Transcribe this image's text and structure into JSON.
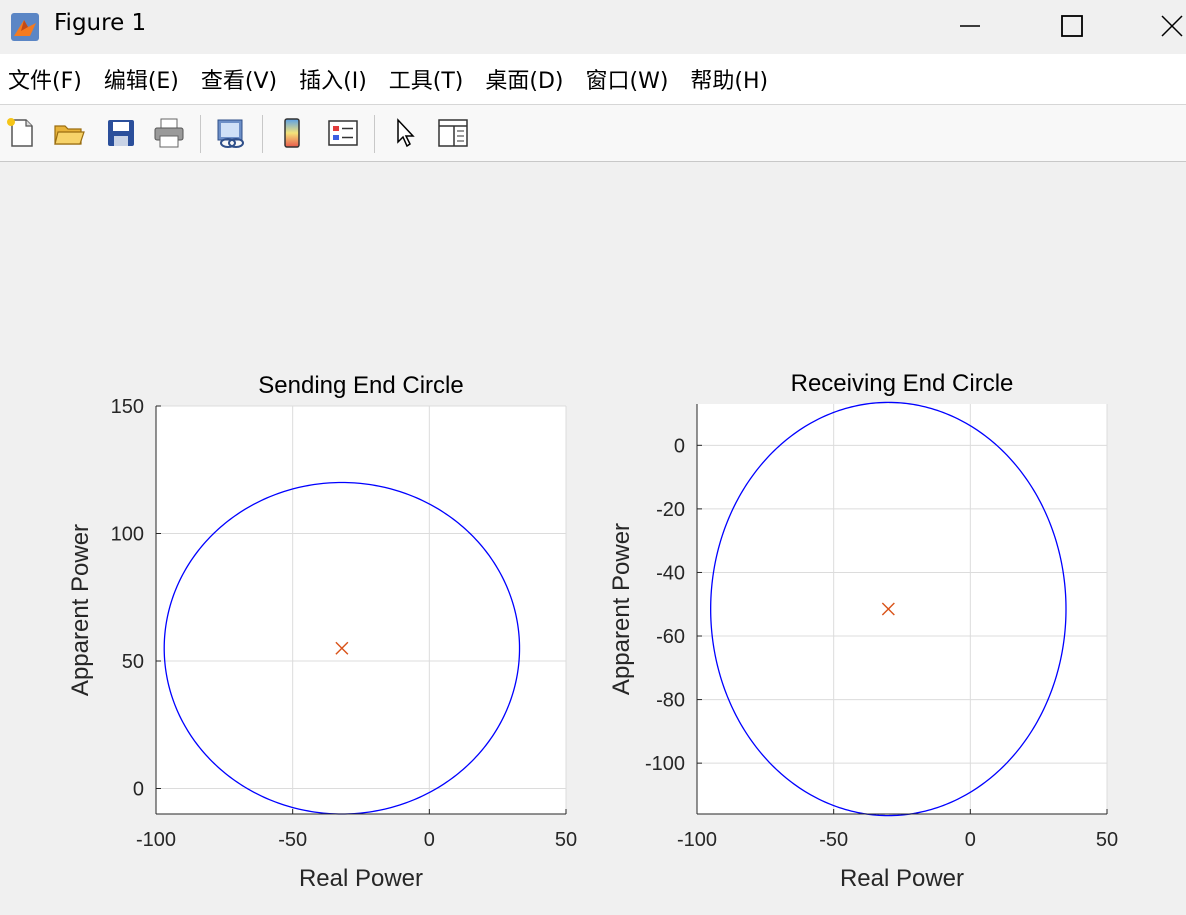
{
  "window": {
    "title": "Figure 1",
    "controls": [
      "minimize",
      "maximize",
      "close"
    ]
  },
  "menu": {
    "items": [
      "文件(F)",
      "编辑(E)",
      "查看(V)",
      "插入(I)",
      "工具(T)",
      "桌面(D)",
      "窗口(W)",
      "帮助(H)"
    ]
  },
  "toolbar": {
    "icons": [
      "new-figure-icon",
      "open-file-icon",
      "save-icon",
      "print-icon",
      "link-plot-icon",
      "colorbar-icon",
      "legend-icon",
      "edit-plot-pointer-icon",
      "property-inspector-icon"
    ]
  },
  "colors": {
    "circle": "#0000ff",
    "center_marker": "#d95319",
    "grid": "#dcdcdc",
    "axes_bg": "#ffffff"
  },
  "chart_data": [
    {
      "type": "line",
      "title": "Sending End Circle",
      "xlabel": "Real Power",
      "ylabel": "Apparent Power",
      "xlim": [
        -100,
        50
      ],
      "ylim": [
        -10,
        150
      ],
      "xticks": [
        -100,
        -50,
        0,
        50
      ],
      "yticks": [
        0,
        50,
        100,
        150
      ],
      "grid": true,
      "series": [
        {
          "kind": "circle",
          "center": [
            -32,
            55
          ],
          "radius": 65
        },
        {
          "kind": "marker",
          "marker": "x",
          "points": [
            [
              -32,
              55
            ]
          ]
        }
      ]
    },
    {
      "type": "line",
      "title": "Receiving End Circle",
      "xlabel": "Real Power",
      "ylabel": "Apparent Power",
      "xlim": [
        -100,
        50
      ],
      "ylim": [
        -116,
        13
      ],
      "xticks": [
        -100,
        -50,
        0,
        50
      ],
      "yticks": [
        -100,
        -80,
        -60,
        -40,
        -20,
        0
      ],
      "grid": true,
      "series": [
        {
          "kind": "circle",
          "center": [
            -30,
            -51.5
          ],
          "radius": 65
        },
        {
          "kind": "marker",
          "marker": "x",
          "points": [
            [
              -30,
              -51.5
            ]
          ]
        }
      ]
    }
  ]
}
